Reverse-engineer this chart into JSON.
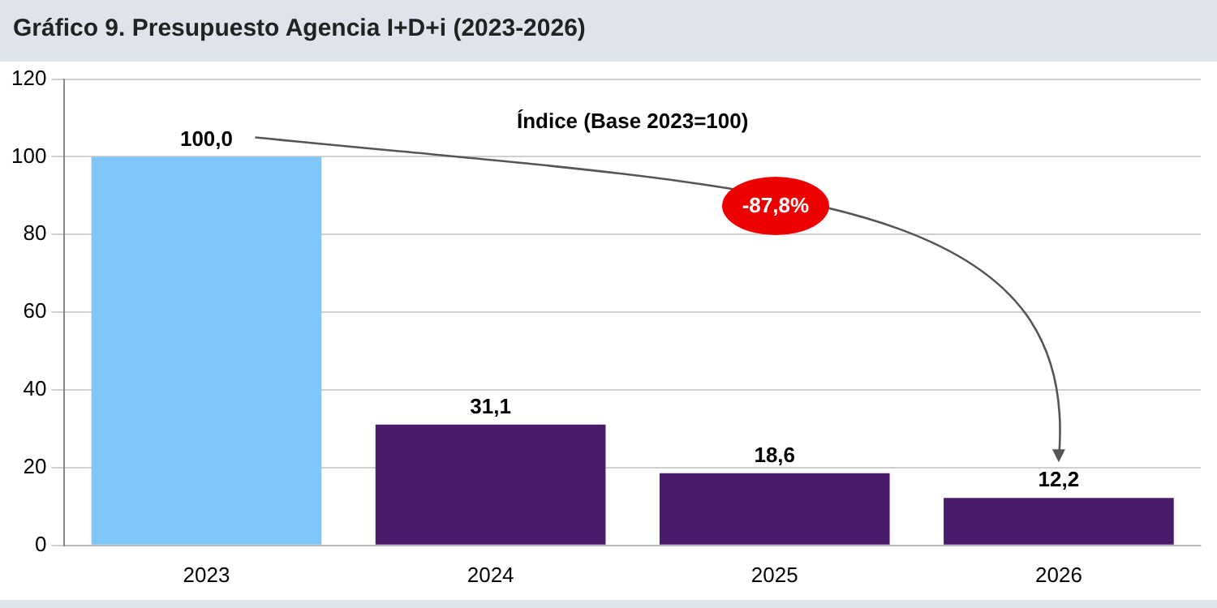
{
  "chart_data": {
    "type": "bar",
    "title": "Gráfico 9. Presupuesto Agencia I+D+i (2023-2026)",
    "categories": [
      "2023",
      "2024",
      "2025",
      "2026"
    ],
    "values": [
      100,
      31.1,
      18.6,
      12.2
    ],
    "colors": [
      "#7fc6fb",
      "#4a1a6b",
      "#4a1a6b",
      "#4a1a6b"
    ],
    "value_labels": [
      "100,0",
      "31,1",
      "18,6",
      "12,2"
    ],
    "ylim": [
      0,
      120
    ],
    "yticks": [
      0,
      20,
      40,
      60,
      80,
      100,
      120
    ],
    "grid": "y",
    "legend": false,
    "annotations": [
      "Índice (Base 2023=100)",
      "-87,8%"
    ]
  }
}
